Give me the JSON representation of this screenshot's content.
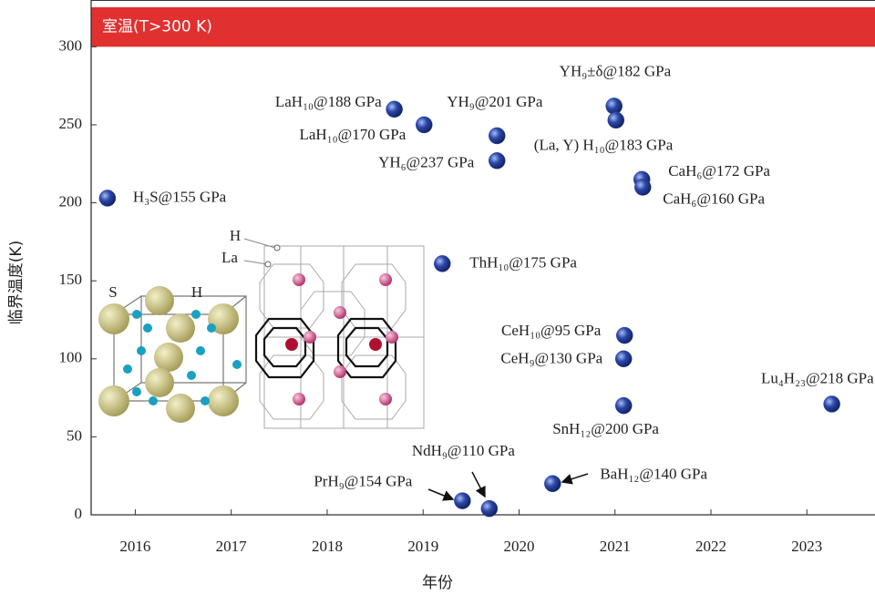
{
  "chart_data": {
    "type": "scatter",
    "annotation": "室温(T>300 K)",
    "x_label": "年份",
    "y_label": "临界温度(K)",
    "x": [
      2015.71,
      2018.7,
      2019.01,
      2019.77,
      2019.77,
      2020.99,
      2021.01,
      2021.28,
      2021.29,
      2019.2,
      2021.1,
      2021.09,
      2021.09,
      2023.26,
      2020.35,
      2019.69,
      2019.41
    ],
    "series": [
      {
        "color": "#2b47a8",
        "values": [
          203,
          260,
          250,
          243,
          227,
          262,
          253,
          215,
          210,
          161,
          115,
          100,
          70,
          71,
          20,
          4,
          9
        ]
      }
    ],
    "point_labels": [
      "H₃S@155 GPa",
      "LaH₁₀@188 GPa",
      "LaH₁₀@170 GPa",
      "YH₉@201 GPa",
      "YH₆@237 GPa",
      "YH₉±δ@182 GPa",
      "(La, Y) H₁₀@183 GPa",
      "CaH₆@172 GPa",
      "CaH₆@160 GPa",
      "ThH₁₀@175 GPa",
      "CeH₁₀@95 GPa",
      "CeH₉@130 GPa",
      "SnH₁₂@200 GPa",
      "Lu₄H₂₃@218 GPa",
      "BaH₁₂@140 GPa",
      "NdH₉@110 GPa",
      "PrH₉@154 GPa"
    ],
    "inset_labels": [
      "S",
      "H",
      "H",
      "La"
    ],
    "xlim": [
      2015.54,
      2023.71
    ],
    "xticks": [
      2016,
      2017,
      2018,
      2019,
      2020,
      2021,
      2022,
      2023
    ],
    "ylim": [
      0,
      330
    ],
    "yticks": [
      0,
      50,
      100,
      150,
      200,
      250,
      300
    ],
    "band_color": "#e03030"
  }
}
